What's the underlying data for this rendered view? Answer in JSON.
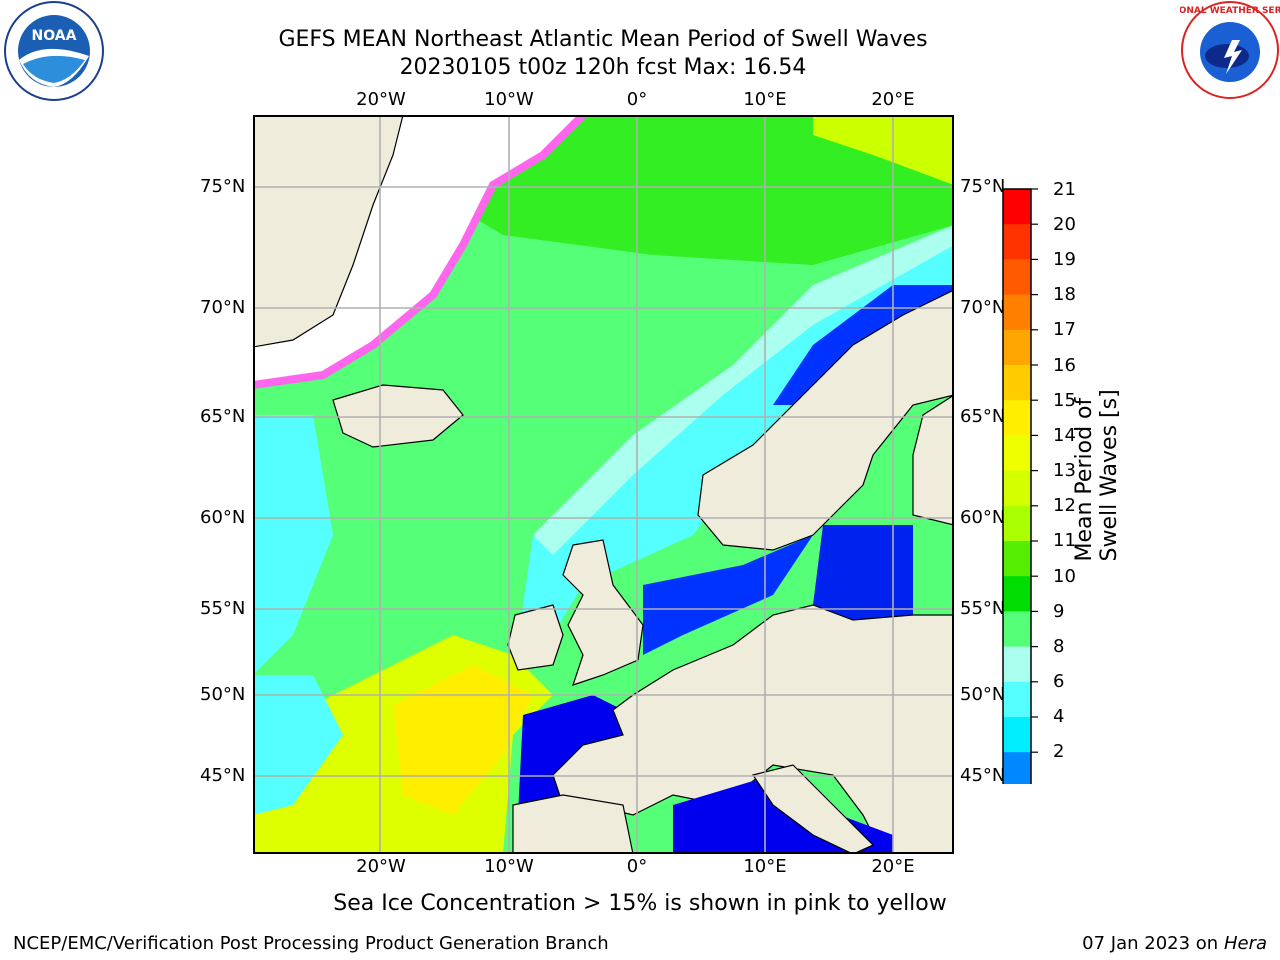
{
  "title_line1": "GEFS MEAN Northeast Atlantic Mean Period of Swell Waves",
  "title_line2": "20230105 t00z 120h fcst   Max: 16.54",
  "footnote": "Sea Ice Concentration > 15% is shown in pink to yellow",
  "credit": "NCEP/EMC/Verification Post Processing Product Generation Branch",
  "run_date_prefix": "07 Jan 2023 on ",
  "run_host": "Hera",
  "longitude_labels": [
    "20°W",
    "10°W",
    "0°",
    "10°E",
    "20°E"
  ],
  "latitude_labels": [
    "75°N",
    "70°N",
    "65°N",
    "60°N",
    "55°N",
    "50°N",
    "45°N"
  ],
  "colorbar": {
    "label": "Mean Period of Swell Waves [s]",
    "ticks": [
      "21",
      "20",
      "19",
      "18",
      "17",
      "16",
      "15",
      "14",
      "13",
      "12",
      "11",
      "10",
      "9",
      "8",
      "6",
      "4",
      "2"
    ],
    "colors": [
      "#ff0000",
      "#ff3300",
      "#ff5a00",
      "#ff8000",
      "#ffa600",
      "#ffcc00",
      "#ffee00",
      "#eeff00",
      "#d4ff00",
      "#aaff00",
      "#55ee00",
      "#00dd00",
      "#55ff77",
      "#aaffee",
      "#55ffff",
      "#00eeff",
      "#0088ff",
      "#0000ee"
    ]
  },
  "map_colors": {
    "land": "#efecdc",
    "ocean_mid": "#55ff77",
    "ice_edge": "#ff66ee"
  },
  "logos": {
    "left": "NOAA",
    "right": "NATIONAL WEATHER SERVICE"
  }
}
